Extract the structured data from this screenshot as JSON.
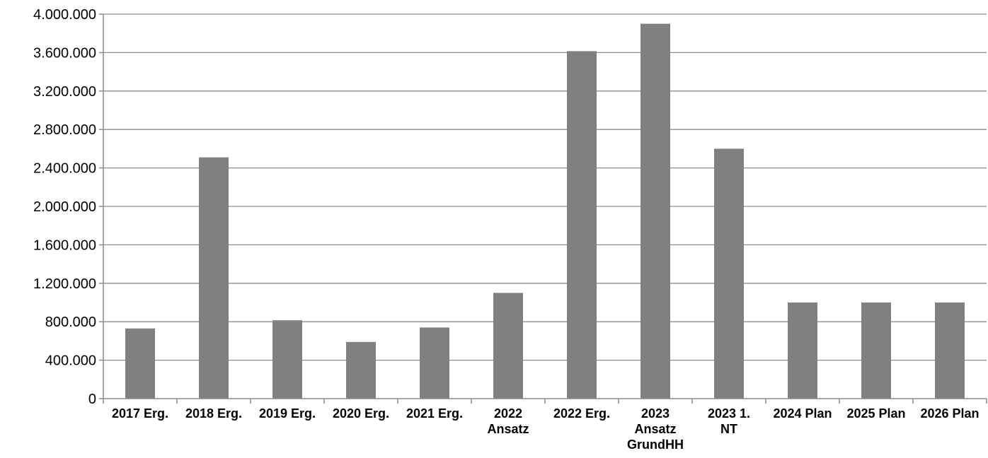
{
  "chart_data": {
    "type": "bar",
    "title": "",
    "xlabel": "",
    "ylabel": "",
    "categories": [
      [
        "2017 Erg."
      ],
      [
        "2018 Erg."
      ],
      [
        "2019 Erg."
      ],
      [
        "2020 Erg."
      ],
      [
        "2021 Erg."
      ],
      [
        "2022",
        "Ansatz"
      ],
      [
        "2022 Erg."
      ],
      [
        "2023",
        "Ansatz",
        "GrundHH"
      ],
      [
        "2023 1.",
        "NT"
      ],
      [
        "2024 Plan"
      ],
      [
        "2025 Plan"
      ],
      [
        "2026 Plan"
      ]
    ],
    "values": [
      730000,
      2510000,
      815000,
      590000,
      740000,
      1100000,
      3615000,
      3900000,
      2600000,
      1000000,
      1000000,
      1000000
    ],
    "ylim": [
      0,
      4000000
    ],
    "yticks": [
      0,
      400000,
      800000,
      1200000,
      1600000,
      2000000,
      2400000,
      2800000,
      3200000,
      3600000,
      4000000
    ],
    "ytick_labels": [
      "0",
      "400.000",
      "800.000",
      "1.200.000",
      "1.600.000",
      "2.000.000",
      "2.400.000",
      "2.800.000",
      "3.200.000",
      "3.600.000",
      "4.000.000"
    ],
    "grid": true,
    "bar_color": "#808080",
    "grid_color": "#8c8c8c"
  }
}
